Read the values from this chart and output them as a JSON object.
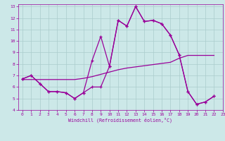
{
  "xlabel": "Windchill (Refroidissement éolien,°C)",
  "background_color": "#cce8e8",
  "grid_color": "#aacccc",
  "line_color": "#990099",
  "xlim": [
    -0.5,
    23
  ],
  "ylim": [
    4,
    13.2
  ],
  "xticks": [
    0,
    1,
    2,
    3,
    4,
    5,
    6,
    7,
    8,
    9,
    10,
    11,
    12,
    13,
    14,
    15,
    16,
    17,
    18,
    19,
    20,
    21,
    22,
    23
  ],
  "yticks": [
    4,
    5,
    6,
    7,
    8,
    9,
    10,
    11,
    12,
    13
  ],
  "upper_x": [
    0,
    1,
    2,
    3,
    4,
    5,
    6,
    7,
    8,
    9,
    10,
    11,
    12,
    13,
    14,
    15,
    16,
    17,
    18,
    19,
    20,
    21,
    22
  ],
  "upper_y": [
    6.7,
    7.0,
    6.3,
    5.6,
    5.6,
    5.5,
    5.0,
    5.5,
    8.3,
    10.4,
    7.8,
    11.8,
    11.3,
    13.0,
    11.7,
    11.8,
    11.5,
    10.5,
    8.8,
    5.6,
    4.5,
    4.7,
    5.2
  ],
  "lower_x": [
    0,
    1,
    2,
    3,
    4,
    5,
    6,
    7,
    8,
    9,
    10,
    11,
    12,
    13,
    14,
    15,
    16,
    17,
    18,
    19,
    20,
    21,
    22
  ],
  "lower_y": [
    6.7,
    7.0,
    6.3,
    5.6,
    5.6,
    5.5,
    5.0,
    5.5,
    6.0,
    6.0,
    7.8,
    11.8,
    11.3,
    13.0,
    11.7,
    11.8,
    11.5,
    10.5,
    8.8,
    5.6,
    4.5,
    4.7,
    5.2
  ],
  "smooth_x": [
    0,
    1,
    2,
    3,
    4,
    5,
    6,
    7,
    8,
    9,
    10,
    11,
    12,
    13,
    14,
    15,
    16,
    17,
    18,
    19,
    20,
    21,
    22
  ],
  "smooth_y": [
    6.65,
    6.65,
    6.65,
    6.65,
    6.65,
    6.65,
    6.65,
    6.75,
    6.9,
    7.1,
    7.3,
    7.5,
    7.65,
    7.75,
    7.85,
    7.95,
    8.05,
    8.15,
    8.5,
    8.75,
    8.75,
    8.75,
    8.75
  ]
}
